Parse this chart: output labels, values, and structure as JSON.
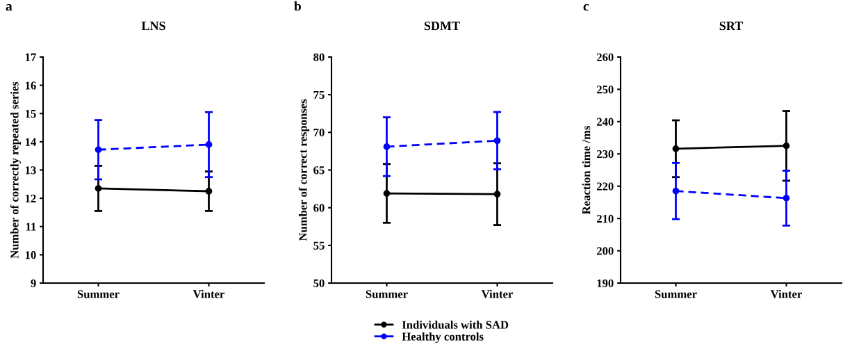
{
  "chart_data": [
    {
      "type": "line",
      "title": "LNS",
      "ylabel": "Number of correctly repeated series",
      "annotations": [
        "a"
      ],
      "categories": [
        "Summer",
        "Vinter"
      ],
      "ylim": [
        9,
        17
      ],
      "yticks": [
        9,
        10,
        11,
        12,
        13,
        14,
        15,
        16,
        17
      ],
      "marker": "circle",
      "grid": false,
      "series": [
        {
          "color": "#000000",
          "values": [
            12.35,
            12.25
          ],
          "errors": [
            0.8,
            0.7
          ],
          "line_style": "solid"
        },
        {
          "color": "#0000ff",
          "values": [
            13.72,
            13.9
          ],
          "errors": [
            1.05,
            1.15
          ],
          "line_style": "dashed"
        }
      ]
    },
    {
      "type": "line",
      "title": "SDMT",
      "ylabel": "Number of correct responses",
      "annotations": [
        "b"
      ],
      "categories": [
        "Summer",
        "Vinter"
      ],
      "ylim": [
        50,
        80
      ],
      "yticks": [
        50,
        55,
        60,
        65,
        70,
        75,
        80
      ],
      "marker": "circle",
      "grid": false,
      "legend": "bottom",
      "series": [
        {
          "name": "Individuals with SAD",
          "color": "#000000",
          "values": [
            61.9,
            61.8
          ],
          "errors": [
            3.9,
            4.1
          ],
          "line_style": "solid"
        },
        {
          "name": "Healthy controls",
          "color": "#0000ff",
          "values": [
            68.1,
            68.9
          ],
          "errors": [
            3.9,
            3.8
          ],
          "line_style": "dashed"
        }
      ]
    },
    {
      "type": "line",
      "title": "SRT",
      "ylabel": "Reaction time /ms",
      "annotations": [
        "c"
      ],
      "categories": [
        "Summer",
        "Vinter"
      ],
      "ylim": [
        190,
        260
      ],
      "yticks": [
        190,
        200,
        210,
        220,
        230,
        240,
        250,
        260
      ],
      "marker": "circle",
      "grid": false,
      "series": [
        {
          "color": "#000000",
          "values": [
            231.6,
            232.5
          ],
          "errors": [
            8.8,
            10.8
          ],
          "line_style": "solid"
        },
        {
          "color": "#0000ff",
          "values": [
            218.5,
            216.3
          ],
          "errors": [
            8.7,
            8.5
          ],
          "line_style": "dashed"
        }
      ]
    }
  ]
}
